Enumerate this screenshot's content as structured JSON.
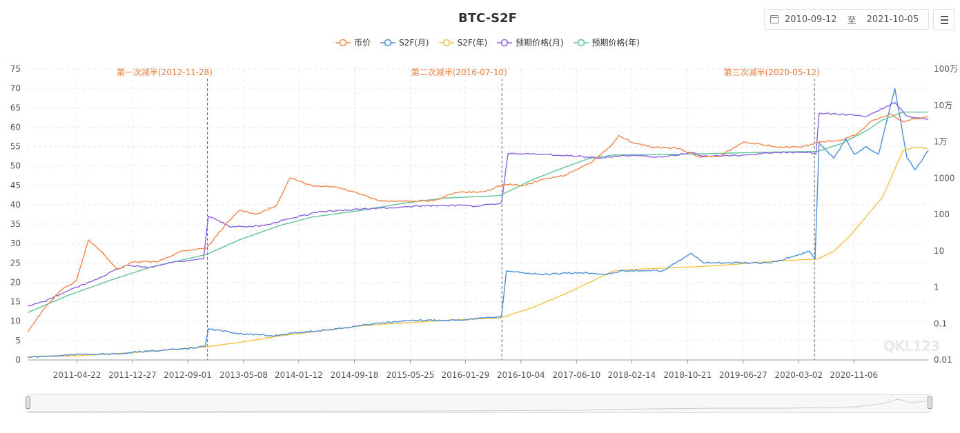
{
  "header": {
    "start_date": "2010-09-12",
    "range_sep": "至",
    "end_date": "2021-10-05"
  },
  "watermark": "QKL123",
  "chart_data": {
    "type": "line",
    "title": "BTC-S2F",
    "x_tick_labels": [
      "2011-04-22",
      "2011-12-27",
      "2012-09-01",
      "2013-05-08",
      "2014-01-12",
      "2014-09-18",
      "2015-05-25",
      "2016-01-29",
      "2016-10-04",
      "2017-06-10",
      "2018-02-14",
      "2018-10-21",
      "2019-06-27",
      "2020-03-02",
      "2020-11-06"
    ],
    "y_left": {
      "ticks": [
        "0",
        "5",
        "10",
        "15",
        "20",
        "25",
        "30",
        "35",
        "40",
        "45",
        "50",
        "55",
        "60",
        "65",
        "70",
        "75"
      ],
      "min": 0,
      "max": 75
    },
    "y_right": {
      "ticks": [
        "0.01",
        "0.1",
        "1",
        "10",
        "100",
        "1000",
        "1万",
        "10万",
        "100万"
      ],
      "scale": "log",
      "min": 0.01,
      "max": 1000000
    },
    "halvings": [
      {
        "label": "第一次减半(2012-11-28)",
        "date": "2012-11-28"
      },
      {
        "label": "第二次减半(2016-07-10)",
        "date": "2016-07-10"
      },
      {
        "label": "第三次减半(2020-05-12)",
        "date": "2020-05-12"
      }
    ],
    "series": [
      {
        "name": "币价",
        "color": "#f4874b",
        "axis": "right",
        "points": [
          [
            2010.7,
            0.06
          ],
          [
            2010.9,
            0.25
          ],
          [
            2011.1,
            0.8
          ],
          [
            2011.3,
            1.5
          ],
          [
            2011.45,
            20
          ],
          [
            2011.6,
            10
          ],
          [
            2011.8,
            3
          ],
          [
            2012.0,
            5
          ],
          [
            2012.3,
            5
          ],
          [
            2012.6,
            10
          ],
          [
            2012.9,
            12
          ],
          [
            2013.15,
            60
          ],
          [
            2013.3,
            130
          ],
          [
            2013.5,
            100
          ],
          [
            2013.75,
            170
          ],
          [
            2013.92,
            1000
          ],
          [
            2014.2,
            600
          ],
          [
            2014.5,
            560
          ],
          [
            2014.8,
            350
          ],
          [
            2015.0,
            240
          ],
          [
            2015.3,
            230
          ],
          [
            2015.7,
            240
          ],
          [
            2015.95,
            400
          ],
          [
            2016.3,
            420
          ],
          [
            2016.55,
            670
          ],
          [
            2016.8,
            620
          ],
          [
            2017.0,
            900
          ],
          [
            2017.3,
            1200
          ],
          [
            2017.6,
            2500
          ],
          [
            2017.85,
            7000
          ],
          [
            2017.96,
            15000
          ],
          [
            2018.15,
            9000
          ],
          [
            2018.4,
            7000
          ],
          [
            2018.7,
            6500
          ],
          [
            2018.95,
            3800
          ],
          [
            2019.2,
            4000
          ],
          [
            2019.5,
            10000
          ],
          [
            2019.75,
            8000
          ],
          [
            2019.95,
            7200
          ],
          [
            2020.2,
            7000
          ],
          [
            2020.4,
            9500
          ],
          [
            2020.7,
            11000
          ],
          [
            2020.9,
            17000
          ],
          [
            2021.05,
            35000
          ],
          [
            2021.3,
            58000
          ],
          [
            2021.45,
            35000
          ],
          [
            2021.6,
            42000
          ],
          [
            2021.76,
            48000
          ]
        ]
      },
      {
        "name": "S2F(月)",
        "color": "#4a8fd9",
        "axis": "left",
        "points": [
          [
            2010.7,
            0.7
          ],
          [
            2011.0,
            1.0
          ],
          [
            2011.4,
            1.5
          ],
          [
            2011.8,
            1.5
          ],
          [
            2012.2,
            2.3
          ],
          [
            2012.6,
            2.8
          ],
          [
            2012.88,
            3.5
          ],
          [
            2012.92,
            8
          ],
          [
            2013.3,
            6.8
          ],
          [
            2013.7,
            6.2
          ],
          [
            2014.0,
            7
          ],
          [
            2014.5,
            8
          ],
          [
            2015.0,
            9.5
          ],
          [
            2015.5,
            10.2
          ],
          [
            2016.0,
            10.3
          ],
          [
            2016.3,
            10.8
          ],
          [
            2016.5,
            11
          ],
          [
            2016.52,
            11.5
          ],
          [
            2016.58,
            23
          ],
          [
            2017.0,
            22
          ],
          [
            2017.5,
            22.5
          ],
          [
            2017.8,
            22
          ],
          [
            2018.0,
            23
          ],
          [
            2018.5,
            23
          ],
          [
            2018.85,
            27.5
          ],
          [
            2019.0,
            25
          ],
          [
            2019.5,
            25
          ],
          [
            2019.8,
            25
          ],
          [
            2020.0,
            26
          ],
          [
            2020.3,
            28
          ],
          [
            2020.37,
            26
          ],
          [
            2020.42,
            56
          ],
          [
            2020.6,
            52
          ],
          [
            2020.75,
            57
          ],
          [
            2020.85,
            53
          ],
          [
            2021.0,
            55
          ],
          [
            2021.15,
            53
          ],
          [
            2021.35,
            70
          ],
          [
            2021.5,
            52
          ],
          [
            2021.6,
            49
          ],
          [
            2021.76,
            54
          ]
        ]
      },
      {
        "name": "S2F(年)",
        "color": "#f5c244",
        "axis": "left",
        "points": [
          [
            2010.7,
            0.8
          ],
          [
            2011.2,
            1.0
          ],
          [
            2011.7,
            1.5
          ],
          [
            2012.2,
            2.2
          ],
          [
            2012.9,
            3.4
          ],
          [
            2013.3,
            4.5
          ],
          [
            2013.8,
            6.2
          ],
          [
            2014.3,
            7.5
          ],
          [
            2014.8,
            8.8
          ],
          [
            2015.3,
            9.5
          ],
          [
            2015.9,
            10.3
          ],
          [
            2016.5,
            10.8
          ],
          [
            2016.9,
            13.5
          ],
          [
            2017.3,
            17
          ],
          [
            2017.7,
            21
          ],
          [
            2017.9,
            23
          ],
          [
            2018.3,
            23.5
          ],
          [
            2018.9,
            24
          ],
          [
            2019.3,
            24.5
          ],
          [
            2019.9,
            25.5
          ],
          [
            2020.4,
            26
          ],
          [
            2020.6,
            28
          ],
          [
            2020.8,
            32
          ],
          [
            2021.0,
            37
          ],
          [
            2021.2,
            42
          ],
          [
            2021.45,
            54
          ],
          [
            2021.6,
            54.8
          ],
          [
            2021.76,
            54.5
          ]
        ]
      },
      {
        "name": "预期价格(月)",
        "color": "#8a63e3",
        "axis": "right",
        "points": [
          [
            2010.7,
            0.3
          ],
          [
            2010.9,
            0.4
          ],
          [
            2011.2,
            0.8
          ],
          [
            2011.5,
            1.5
          ],
          [
            2011.9,
            4
          ],
          [
            2012.2,
            3.5
          ],
          [
            2012.5,
            5
          ],
          [
            2012.86,
            6
          ],
          [
            2012.92,
            90
          ],
          [
            2013.2,
            45
          ],
          [
            2013.6,
            50
          ],
          [
            2013.9,
            75
          ],
          [
            2014.3,
            120
          ],
          [
            2014.8,
            140
          ],
          [
            2015.3,
            160
          ],
          [
            2015.8,
            180
          ],
          [
            2016.2,
            170
          ],
          [
            2016.5,
            200
          ],
          [
            2016.52,
            220
          ],
          [
            2016.6,
            4800
          ],
          [
            2017.0,
            4500
          ],
          [
            2017.5,
            4000
          ],
          [
            2017.7,
            3500
          ],
          [
            2018.0,
            4200
          ],
          [
            2018.5,
            3800
          ],
          [
            2018.85,
            5000
          ],
          [
            2019.0,
            4000
          ],
          [
            2019.5,
            4300
          ],
          [
            2019.9,
            5000
          ],
          [
            2020.3,
            5200
          ],
          [
            2020.38,
            4500
          ],
          [
            2020.42,
            60000
          ],
          [
            2020.8,
            55000
          ],
          [
            2021.0,
            50000
          ],
          [
            2021.35,
            120000
          ],
          [
            2021.5,
            50000
          ],
          [
            2021.76,
            40000
          ]
        ]
      },
      {
        "name": "预期价格(年)",
        "color": "#5fc496",
        "axis": "right",
        "points": [
          [
            2010.7,
            0.2
          ],
          [
            2011.2,
            0.6
          ],
          [
            2011.7,
            1.5
          ],
          [
            2012.2,
            3.5
          ],
          [
            2012.9,
            8
          ],
          [
            2013.3,
            20
          ],
          [
            2013.8,
            50
          ],
          [
            2014.2,
            85
          ],
          [
            2014.8,
            130
          ],
          [
            2015.3,
            200
          ],
          [
            2015.8,
            280
          ],
          [
            2016.5,
            330
          ],
          [
            2016.9,
            900
          ],
          [
            2017.3,
            2000
          ],
          [
            2017.6,
            3500
          ],
          [
            2017.9,
            4300
          ],
          [
            2018.4,
            4400
          ],
          [
            2018.9,
            4600
          ],
          [
            2019.4,
            4900
          ],
          [
            2019.9,
            5200
          ],
          [
            2020.4,
            5400
          ],
          [
            2020.7,
            9000
          ],
          [
            2021.0,
            20000
          ],
          [
            2021.2,
            40000
          ],
          [
            2021.45,
            65000
          ],
          [
            2021.76,
            65000
          ]
        ]
      }
    ]
  }
}
